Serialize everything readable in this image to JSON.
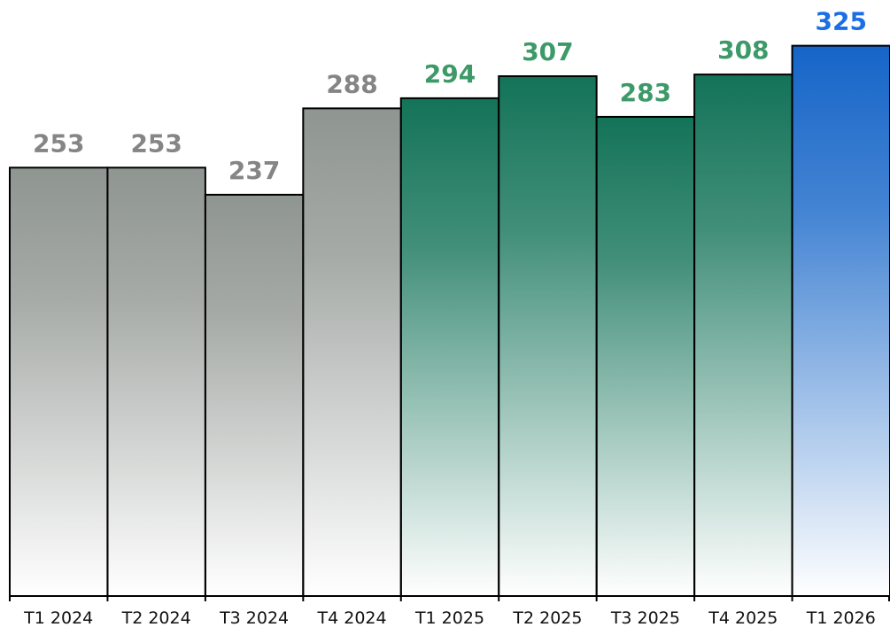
{
  "chart_data": {
    "type": "bar",
    "categories": [
      "T1 2024",
      "T2 2024",
      "T3 2024",
      "T4 2024",
      "T1 2025",
      "T2 2025",
      "T3 2025",
      "T4 2025",
      "T1 2026"
    ],
    "values": [
      253,
      253,
      237,
      288,
      294,
      307,
      283,
      308,
      325
    ],
    "colors": [
      "#8f9591",
      "#8f9591",
      "#8f9591",
      "#8f9591",
      "#137358",
      "#137358",
      "#137358",
      "#137358",
      "#1565c8"
    ],
    "label_colors": [
      "#858585",
      "#858585",
      "#858585",
      "#858585",
      "#3d9a68",
      "#3d9a68",
      "#3d9a68",
      "#3d9a68",
      "#1a6fe6"
    ],
    "ylim": [
      0,
      352
    ]
  }
}
